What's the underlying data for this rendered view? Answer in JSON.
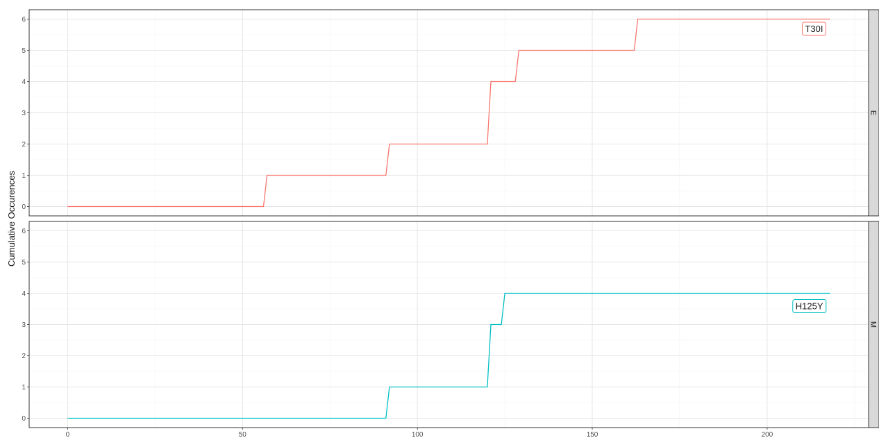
{
  "chart_data": {
    "type": "line",
    "ylabel": "Cumulative Occurences",
    "xlabel": "",
    "xlim": [
      -11,
      229
    ],
    "ylim": [
      -0.3,
      6.3
    ],
    "x_ticks": [
      0,
      50,
      100,
      150,
      200
    ],
    "y_ticks": [
      0,
      1,
      2,
      3,
      4,
      5,
      6
    ],
    "grid": true,
    "panels": [
      {
        "strip": "E",
        "series": [
          {
            "color": "#F8766D",
            "step": [
              [
                0,
                0
              ],
              [
                56,
                0
              ],
              [
                57,
                1
              ],
              [
                91,
                1
              ],
              [
                92,
                2
              ],
              [
                120,
                2
              ],
              [
                121,
                4
              ],
              [
                128,
                4
              ],
              [
                129,
                5
              ],
              [
                162,
                5
              ],
              [
                163,
                6
              ],
              [
                218,
                6
              ]
            ],
            "label": "T30I",
            "label_at": [
              216,
              5.7
            ]
          }
        ]
      },
      {
        "strip": "M",
        "series": [
          {
            "color": "#00BFC4",
            "step": [
              [
                0,
                0
              ],
              [
                91,
                0
              ],
              [
                92,
                1
              ],
              [
                120,
                1
              ],
              [
                121,
                3
              ],
              [
                124,
                3
              ],
              [
                125,
                4
              ],
              [
                218,
                4
              ]
            ],
            "label": "H125Y",
            "label_at": [
              216,
              3.6
            ]
          }
        ]
      }
    ]
  }
}
